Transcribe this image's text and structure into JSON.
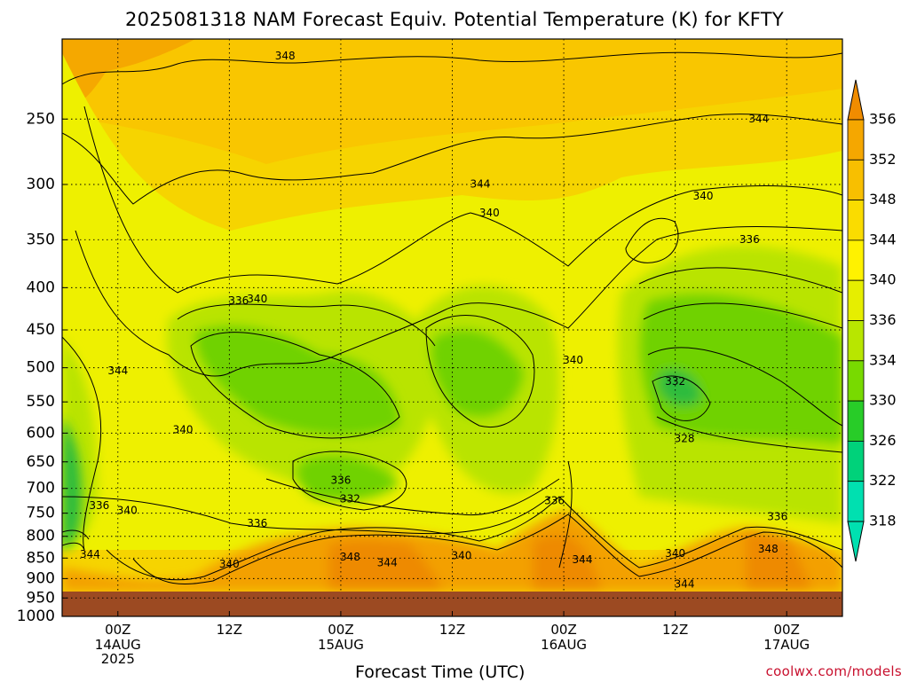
{
  "chart_data": {
    "type": "heatmap",
    "title": "2025081318 NAM Forecast Equiv. Potential Temperature (K) for KFTY",
    "xlabel": "Forecast Time (UTC)",
    "ylabel": "",
    "y_scale": "log",
    "ylim": [
      1000,
      200
    ],
    "y_ticks": [
      "250",
      "300",
      "350",
      "400",
      "450",
      "500",
      "550",
      "600",
      "650",
      "700",
      "750",
      "800",
      "850",
      "900",
      "950",
      "1000"
    ],
    "x_ticks": [
      {
        "time": "2025-08-14T00Z",
        "label": "00Z",
        "sub": "14AUG",
        "sub2": "2025"
      },
      {
        "time": "2025-08-14T12Z",
        "label": "12Z",
        "sub": "",
        "sub2": ""
      },
      {
        "time": "2025-08-15T00Z",
        "label": "00Z",
        "sub": "15AUG",
        "sub2": ""
      },
      {
        "time": "2025-08-15T12Z",
        "label": "12Z",
        "sub": "",
        "sub2": ""
      },
      {
        "time": "2025-08-16T00Z",
        "label": "00Z",
        "sub": "16AUG",
        "sub2": ""
      },
      {
        "time": "2025-08-16T12Z",
        "label": "12Z",
        "sub": "",
        "sub2": ""
      },
      {
        "time": "2025-08-17T00Z",
        "label": "00Z",
        "sub": "17AUG",
        "sub2": ""
      }
    ],
    "xlim": [
      "2025-08-13T18Z",
      "2025-08-17T06Z"
    ],
    "grid": true,
    "colorbar": {
      "levels": [
        "356",
        "352",
        "348",
        "344",
        "340",
        "336",
        "334",
        "330",
        "326",
        "322",
        "318"
      ],
      "colors": [
        "#f08c00",
        "#f5a700",
        "#f8bf00",
        "#fadc00",
        "#fff200",
        "#e6ee00",
        "#b8e600",
        "#78da00",
        "#28cc28",
        "#00d27a",
        "#00e0b0"
      ]
    },
    "ground_color": "#9c4a22",
    "fill_colors": {
      "bg": "#f6d400",
      "top": "#f9c600",
      "topmost": "#f5a800",
      "mid_light": "#eef000",
      "mid_green": "#b9e400",
      "core_green": "#6fd200",
      "deep_green": "#2dbc3c",
      "bottom_warm": "#f3a000",
      "bottom_hot": "#ee8a00"
    },
    "contour_labels": [
      {
        "text": "348",
        "time": "2025-08-14T18Z",
        "p": 210
      },
      {
        "text": "344",
        "time": "2025-08-15T15Z",
        "p": 300
      },
      {
        "text": "340",
        "time": "2025-08-15T16Z",
        "p": 325
      },
      {
        "text": "344",
        "time": "2025-08-16T21Z",
        "p": 250
      },
      {
        "text": "340",
        "time": "2025-08-16T15Z",
        "p": 310
      },
      {
        "text": "336",
        "time": "2025-08-16T20Z",
        "p": 350
      },
      {
        "text": "336",
        "time": "2025-08-14T13Z",
        "p": 415
      },
      {
        "text": "340",
        "time": "2025-08-14T15Z",
        "p": 413
      },
      {
        "text": "344",
        "time": "2025-08-14T00Z",
        "p": 505
      },
      {
        "text": "340",
        "time": "2025-08-16T01Z",
        "p": 490
      },
      {
        "text": "332",
        "time": "2025-08-16T12Z",
        "p": 520
      },
      {
        "text": "340",
        "time": "2025-08-14T07Z",
        "p": 595
      },
      {
        "text": "328",
        "time": "2025-08-16T13Z",
        "p": 610
      },
      {
        "text": "336",
        "time": "2025-08-15T00Z",
        "p": 685
      },
      {
        "text": "332",
        "time": "2025-08-15T01Z",
        "p": 722
      },
      {
        "text": "336",
        "time": "2025-08-13T22Z",
        "p": 735
      },
      {
        "text": "340",
        "time": "2025-08-14T01Z",
        "p": 745
      },
      {
        "text": "336",
        "time": "2025-08-14T15Z",
        "p": 772
      },
      {
        "text": "336",
        "time": "2025-08-15T23Z",
        "p": 725
      },
      {
        "text": "336",
        "time": "2025-08-16T23Z",
        "p": 758
      },
      {
        "text": "344",
        "time": "2025-08-13T21Z",
        "p": 842
      },
      {
        "text": "348",
        "time": "2025-08-15T01Z",
        "p": 848
      },
      {
        "text": "344",
        "time": "2025-08-15T05Z",
        "p": 862
      },
      {
        "text": "340",
        "time": "2025-08-15T13Z",
        "p": 845
      },
      {
        "text": "340",
        "time": "2025-08-14T12Z",
        "p": 865
      },
      {
        "text": "344",
        "time": "2025-08-16T02Z",
        "p": 855
      },
      {
        "text": "340",
        "time": "2025-08-16T12Z",
        "p": 840
      },
      {
        "text": "348",
        "time": "2025-08-16T22Z",
        "p": 830
      },
      {
        "text": "344",
        "time": "2025-08-16T13Z",
        "p": 915
      }
    ]
  },
  "credit": "coolwx.com/models"
}
